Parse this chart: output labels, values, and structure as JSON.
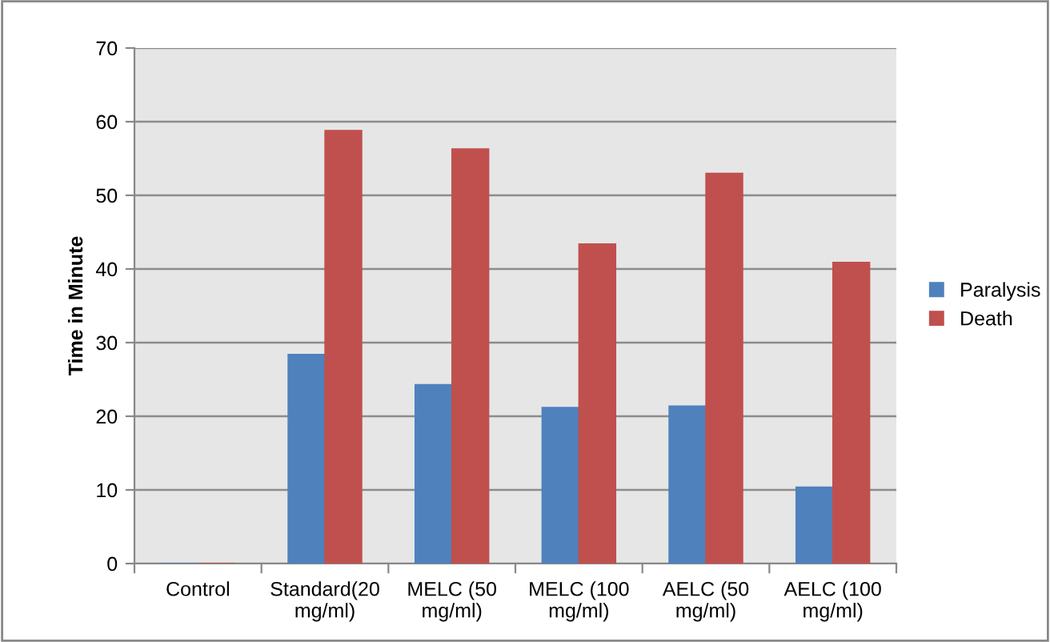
{
  "chart_data": {
    "type": "bar",
    "ylabel": "Time in Minute",
    "categories": [
      "Control",
      "Standard(20 mg/ml)",
      "MELC (50 mg/ml)",
      "MELC (100 mg/ml)",
      "AELC (50 mg/ml)",
      "AELC (100 mg/ml)"
    ],
    "series": [
      {
        "name": "Paralysis",
        "color": "#4f81bd",
        "values": [
          0,
          28.4,
          24.3,
          21.2,
          21.4,
          10.4
        ]
      },
      {
        "name": "Death",
        "color": "#c0504d",
        "values": [
          0,
          58.8,
          56.3,
          43.4,
          53.0,
          40.9
        ]
      }
    ],
    "ylim": [
      0,
      70
    ],
    "yticks": [
      0,
      10,
      20,
      30,
      40,
      50,
      60,
      70
    ],
    "grid": "y",
    "legend": "right"
  }
}
